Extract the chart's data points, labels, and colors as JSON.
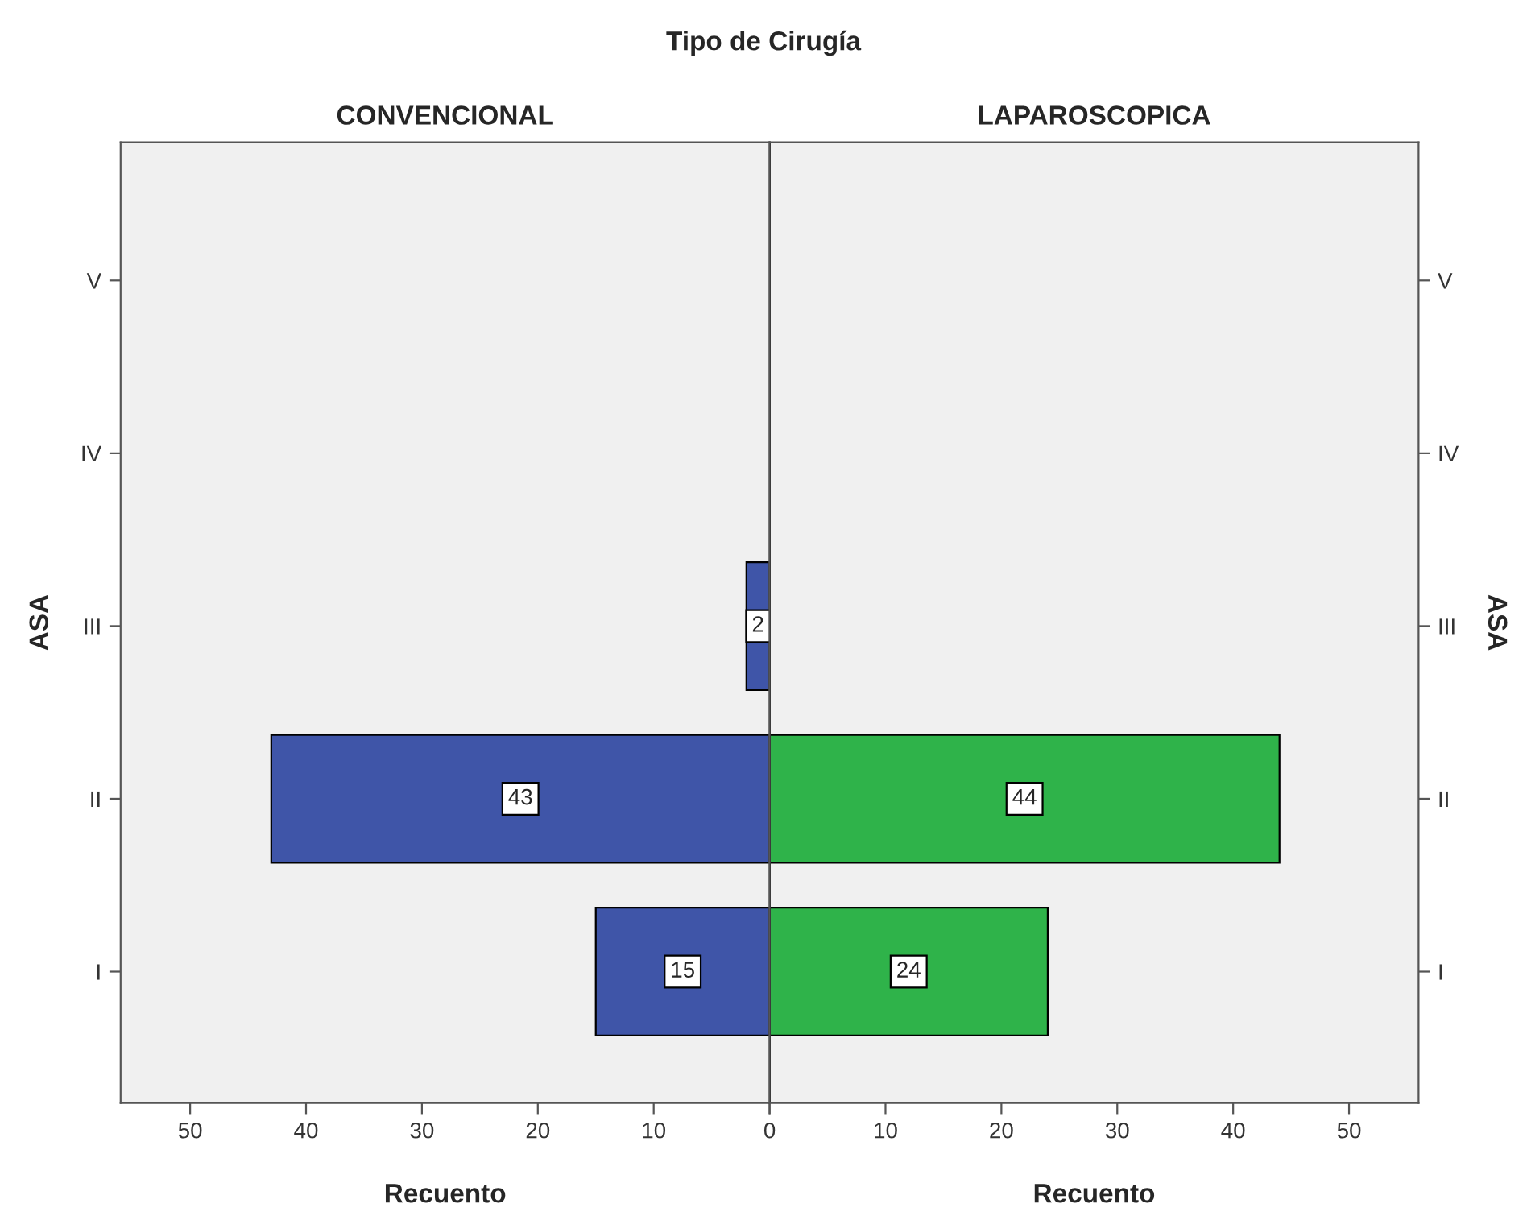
{
  "chart_data": [
    {
      "type": "bar",
      "orientation": "horizontal",
      "title": "CONVENCIONAL",
      "xlabel": "Recuento",
      "ylabel": "ASA",
      "annotations": [
        "Tipo de Cirugía"
      ],
      "categories": [
        "V",
        "IV",
        "III",
        "II",
        "I"
      ],
      "values": [
        null,
        null,
        2,
        43,
        15
      ],
      "color": "#3f55a8",
      "xlim": [
        56,
        0
      ],
      "xticks": [
        50,
        40,
        30,
        20,
        10,
        {
          "value": 0,
          "label": null
        }
      ],
      "data_labels": true,
      "grid": false,
      "legend": false
    },
    {
      "type": "bar",
      "orientation": "horizontal",
      "title": "LAPAROSCOPICA",
      "xlabel": "Recuento",
      "ylabel": "ASA",
      "categories": [
        "V",
        "IV",
        "III",
        "II",
        "I"
      ],
      "values": [
        null,
        null,
        null,
        44,
        24
      ],
      "color": "#2fb34a",
      "xlim": [
        0,
        56
      ],
      "xticks": [
        0,
        10,
        20,
        30,
        40,
        50
      ],
      "data_labels": true,
      "grid": false,
      "legend": false
    }
  ]
}
